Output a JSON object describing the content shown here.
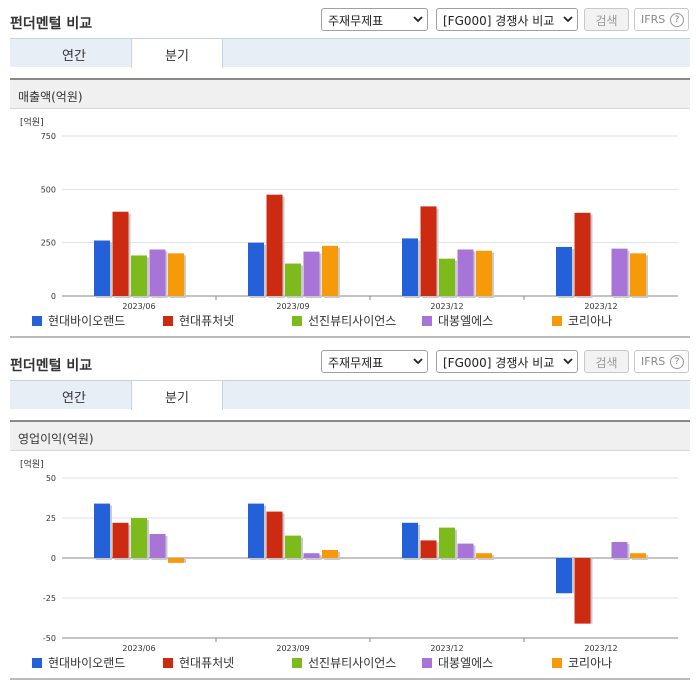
{
  "panels": [
    {
      "title": "펀더멘털 비교",
      "select_statement": "주재무제표",
      "select_group": "[FG000] 경쟁사 비교",
      "search_label": "검색",
      "ifrs_label": "IFRS",
      "help_label": "?",
      "tabs": [
        {
          "label": "연간"
        },
        {
          "label": "분기"
        }
      ],
      "active_tab": 1,
      "section_label": "매출액(억원)",
      "unit_label": "[억원]"
    },
    {
      "title": "펀더멘털 비교",
      "select_statement": "주재무제표",
      "select_group": "[FG000] 경쟁사 비교",
      "search_label": "검색",
      "ifrs_label": "IFRS",
      "help_label": "?",
      "tabs": [
        {
          "label": "연간"
        },
        {
          "label": "분기"
        }
      ],
      "active_tab": 1,
      "section_label": "영업이익(억원)",
      "unit_label": "[억원]"
    }
  ],
  "chart_data": [
    {
      "type": "bar",
      "unit": "[억원]",
      "categories": [
        "2023/06",
        "2023/09",
        "2023/12",
        "2023/12"
      ],
      "ylim": [
        0,
        750
      ],
      "yticks": [
        "750",
        "500",
        "250",
        "0"
      ],
      "ytick_values": [
        750,
        500,
        250,
        0
      ],
      "grid": true,
      "legend_position": "bottom",
      "series": [
        {
          "name": "현대바이오랜드",
          "color": "#2461d9",
          "values": [
            260,
            250,
            270,
            230
          ]
        },
        {
          "name": "현대퓨처넷",
          "color": "#cc2b12",
          "values": [
            395,
            475,
            420,
            390
          ]
        },
        {
          "name": "선진뷰티사이언스",
          "color": "#7dbb1d",
          "values": [
            190,
            152,
            175,
            null
          ]
        },
        {
          "name": "대봉엘에스",
          "color": "#a874d8",
          "values": [
            218,
            208,
            218,
            222
          ]
        },
        {
          "name": "코리아나",
          "color": "#f79a0a",
          "values": [
            200,
            235,
            212,
            200
          ]
        }
      ]
    },
    {
      "type": "bar",
      "unit": "[억원]",
      "categories": [
        "2023/06",
        "2023/09",
        "2023/12",
        "2023/12"
      ],
      "ylim": [
        -50,
        50
      ],
      "yticks": [
        "50",
        "25",
        "0",
        "-25",
        "-50"
      ],
      "ytick_values": [
        50,
        25,
        0,
        -25,
        -50
      ],
      "grid": true,
      "legend_position": "bottom",
      "series": [
        {
          "name": "현대바이오랜드",
          "color": "#2461d9",
          "values": [
            34,
            34,
            22,
            -22
          ]
        },
        {
          "name": "현대퓨처넷",
          "color": "#cc2b12",
          "values": [
            22,
            29,
            11,
            -41
          ]
        },
        {
          "name": "선진뷰티사이언스",
          "color": "#7dbb1d",
          "values": [
            25,
            14,
            19,
            null
          ]
        },
        {
          "name": "대봉엘에스",
          "color": "#a874d8",
          "values": [
            15,
            3,
            9,
            10
          ]
        },
        {
          "name": "코리아나",
          "color": "#f79a0a",
          "values": [
            -3,
            5,
            3,
            3
          ]
        }
      ]
    }
  ]
}
